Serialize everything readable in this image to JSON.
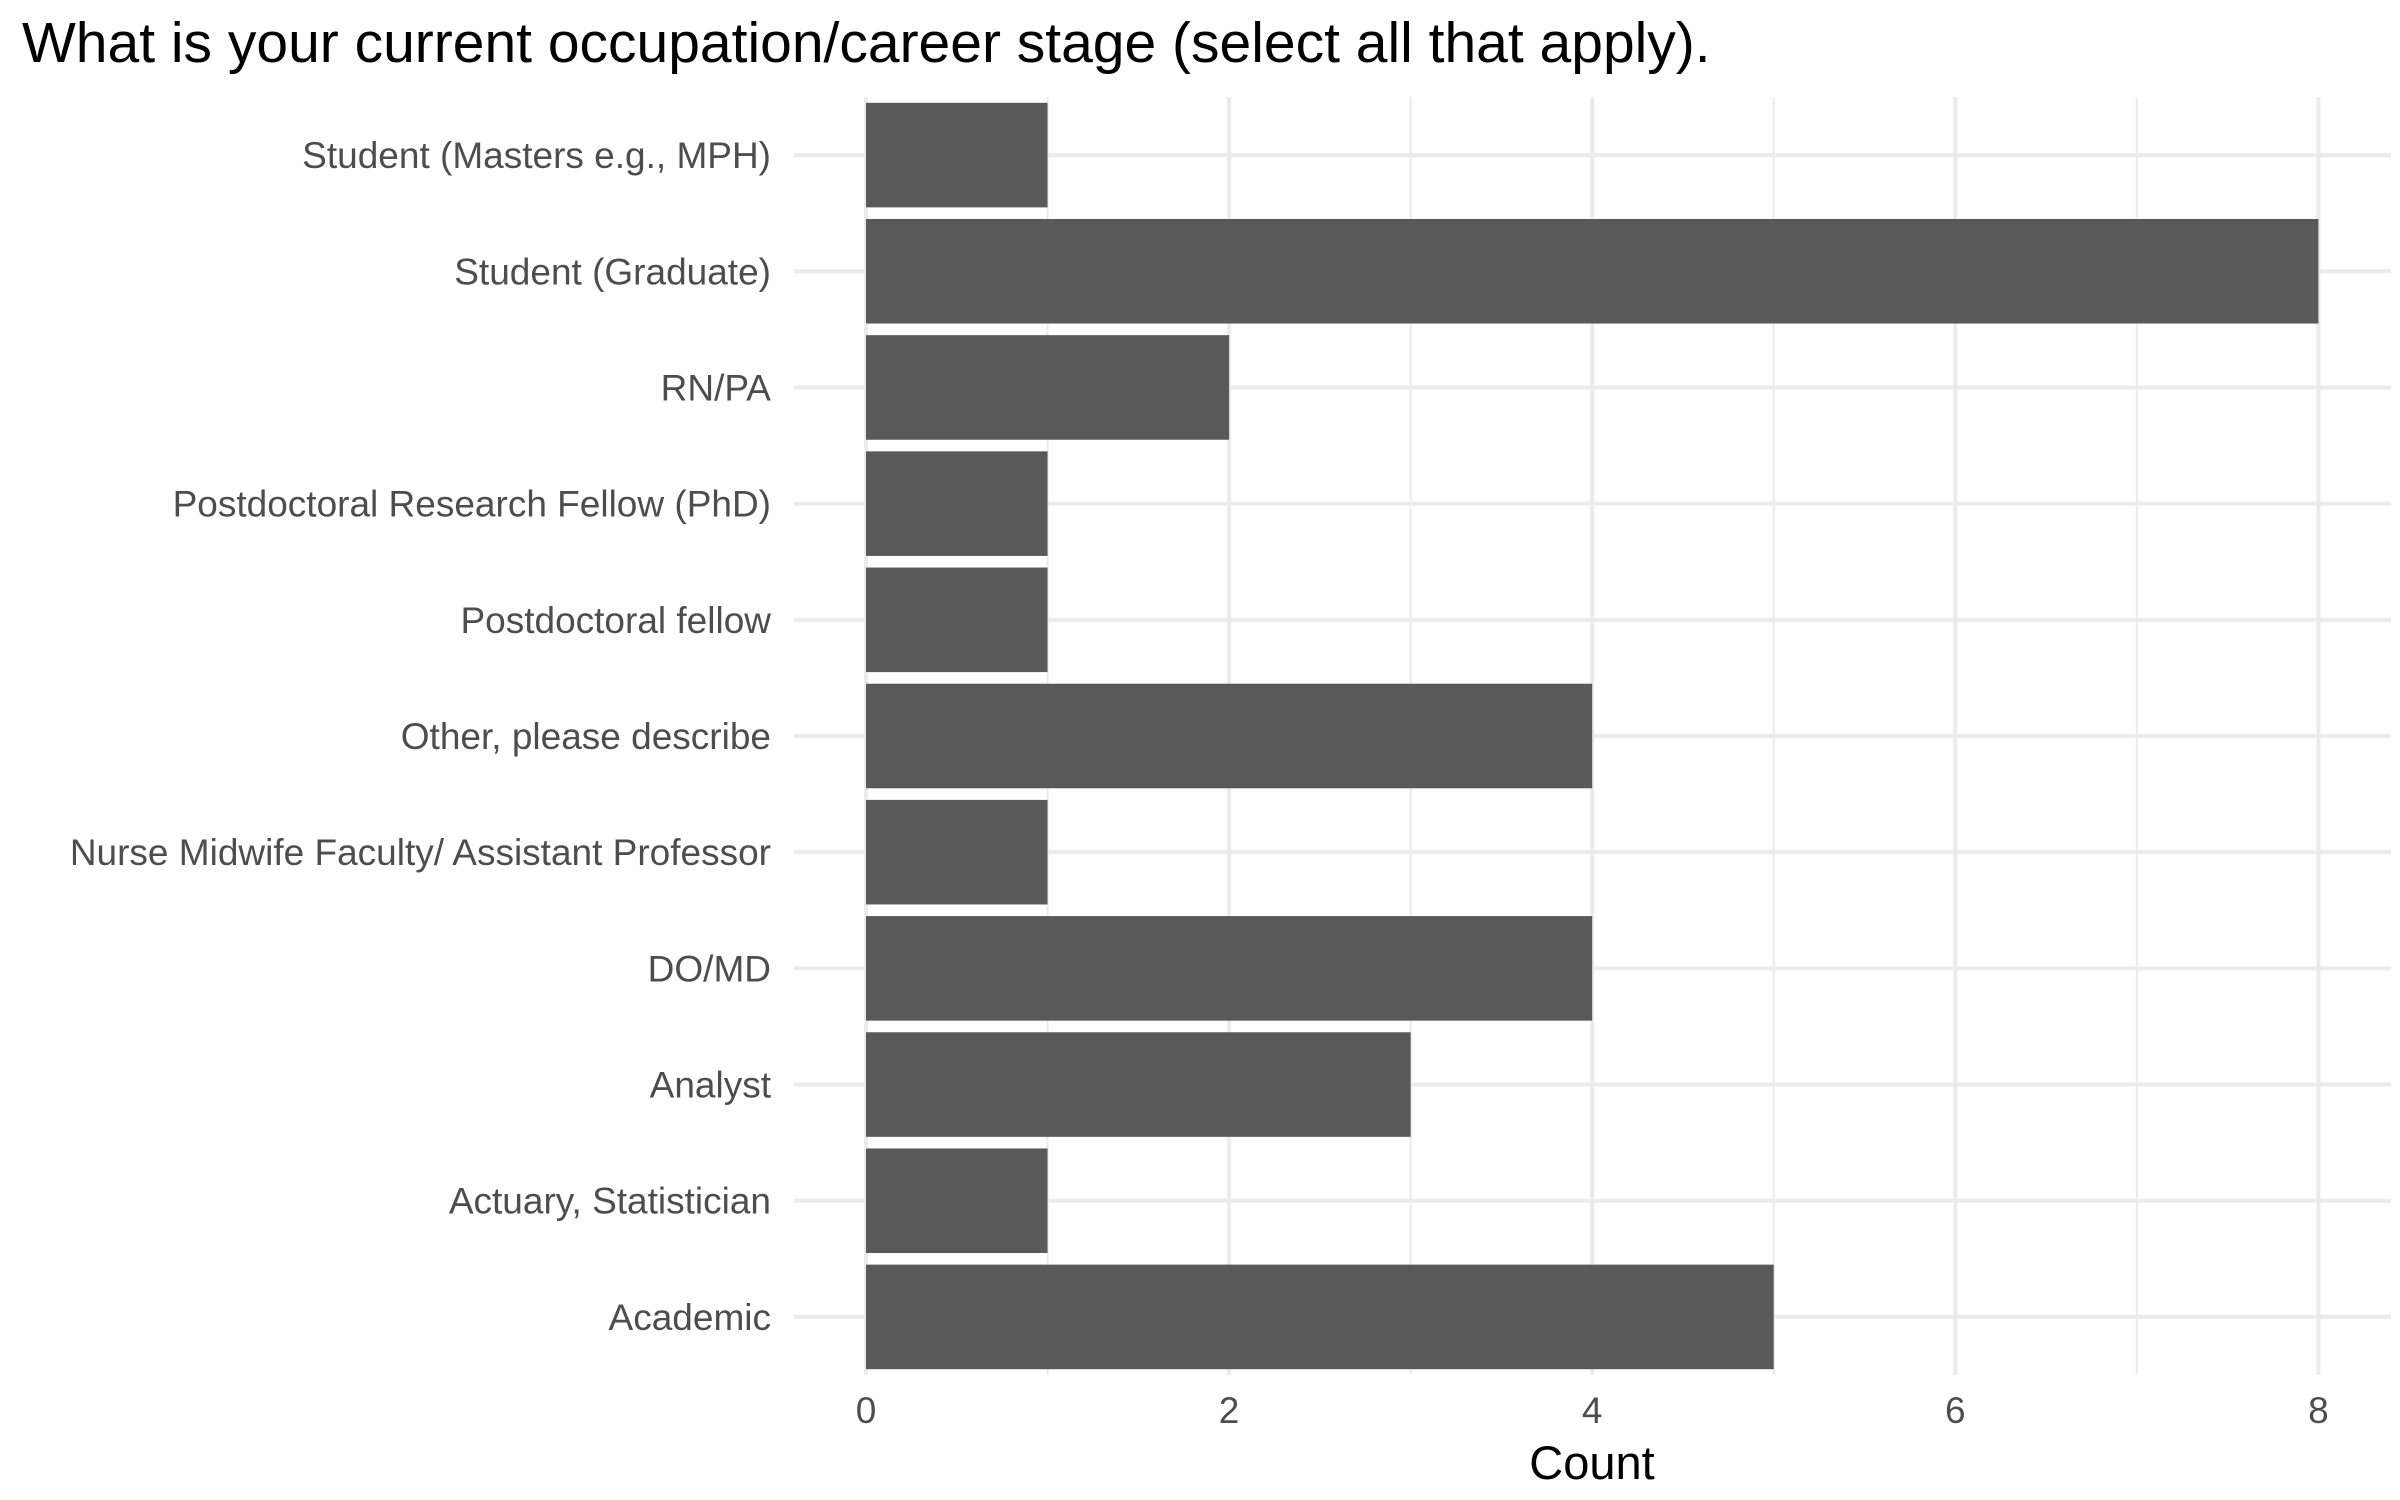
{
  "chart_data": {
    "type": "bar",
    "orientation": "horizontal",
    "title": "What is your current occupation/career stage (select all that apply).",
    "xlabel": "Count",
    "ylabel": "",
    "categories": [
      "Student (Masters e.g., MPH)",
      "Student (Graduate)",
      "RN/PA",
      "Postdoctoral Research Fellow (PhD)",
      "Postdoctoral fellow",
      "Other, please describe",
      "Nurse Midwife Faculty/ Assistant Professor",
      "DO/MD",
      "Analyst",
      "Actuary, Statistician",
      "Academic"
    ],
    "values": [
      1,
      8,
      2,
      1,
      1,
      4,
      1,
      4,
      3,
      1,
      5
    ],
    "xlim": [
      0,
      8.4
    ],
    "xticks": [
      0,
      2,
      4,
      6,
      8
    ],
    "xtick_labels": [
      "0",
      "2",
      "4",
      "6",
      "8"
    ],
    "grid": true,
    "legend": "none",
    "colors": {
      "bar": "#595959",
      "grid": "#ebebeb",
      "tick_text": "#4d4d4d",
      "title_text": "#000000",
      "background": "#ffffff"
    }
  }
}
